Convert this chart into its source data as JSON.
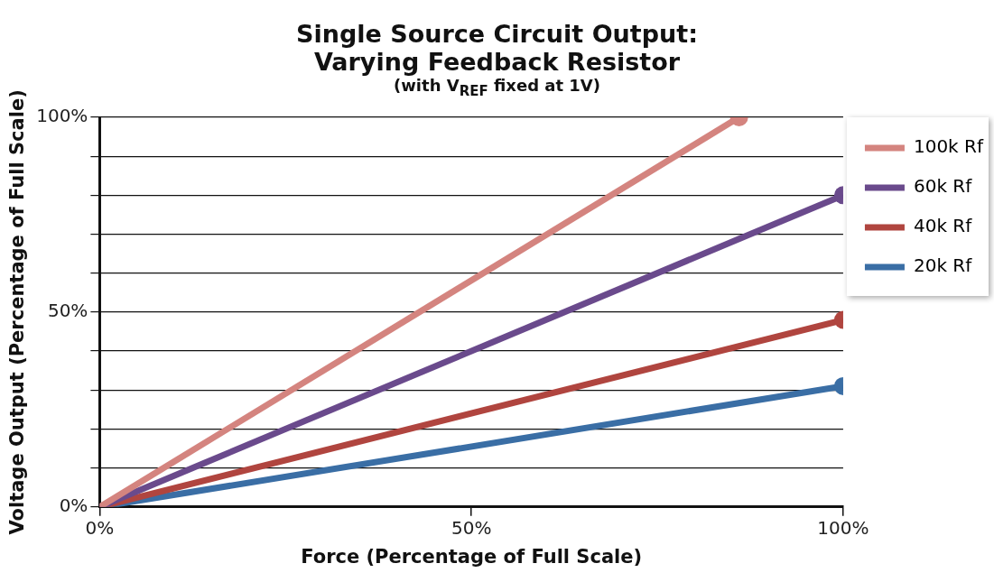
{
  "chart_data": {
    "type": "line",
    "title": "Single Source Circuit Output:\nVarying Feedback Resistor",
    "subtitle": "(with V$_{REF}$ fixed at 1V)",
    "xlabel": "Force (Percentage of Full Scale)",
    "ylabel": "Voltage Output (Percentage of Full Scale)",
    "x": [
      0,
      100
    ],
    "series": [
      {
        "name": "100k Rf",
        "color": "#d4847f",
        "x": [
          0,
          86
        ],
        "values": [
          0,
          100
        ]
      },
      {
        "name": "60k Rf",
        "color": "#6a4a8c",
        "values": [
          0,
          80
        ]
      },
      {
        "name": "40k Rf",
        "color": "#b0453f",
        "values": [
          0,
          48
        ]
      },
      {
        "name": "20k Rf",
        "color": "#3a6ea5",
        "values": [
          0,
          31
        ]
      }
    ],
    "xlim": [
      0,
      100
    ],
    "xticks": [
      {
        "value": 0,
        "label": "0%"
      },
      {
        "value": 50,
        "label": "50%"
      },
      {
        "value": 100,
        "label": "100%"
      }
    ],
    "ylim": [
      0,
      100
    ],
    "yticks": [
      {
        "value": 0,
        "label": "0%"
      },
      {
        "value": 10,
        "label": null
      },
      {
        "value": 20,
        "label": null
      },
      {
        "value": 30,
        "label": null
      },
      {
        "value": 40,
        "label": null
      },
      {
        "value": 50,
        "label": "50%"
      },
      {
        "value": 60,
        "label": null
      },
      {
        "value": 70,
        "label": null
      },
      {
        "value": 80,
        "label": null
      },
      {
        "value": 90,
        "label": null
      },
      {
        "value": 100,
        "label": "100%"
      }
    ],
    "grid": "y",
    "legend": "top right",
    "marker": "circle",
    "line_style": "solid"
  }
}
